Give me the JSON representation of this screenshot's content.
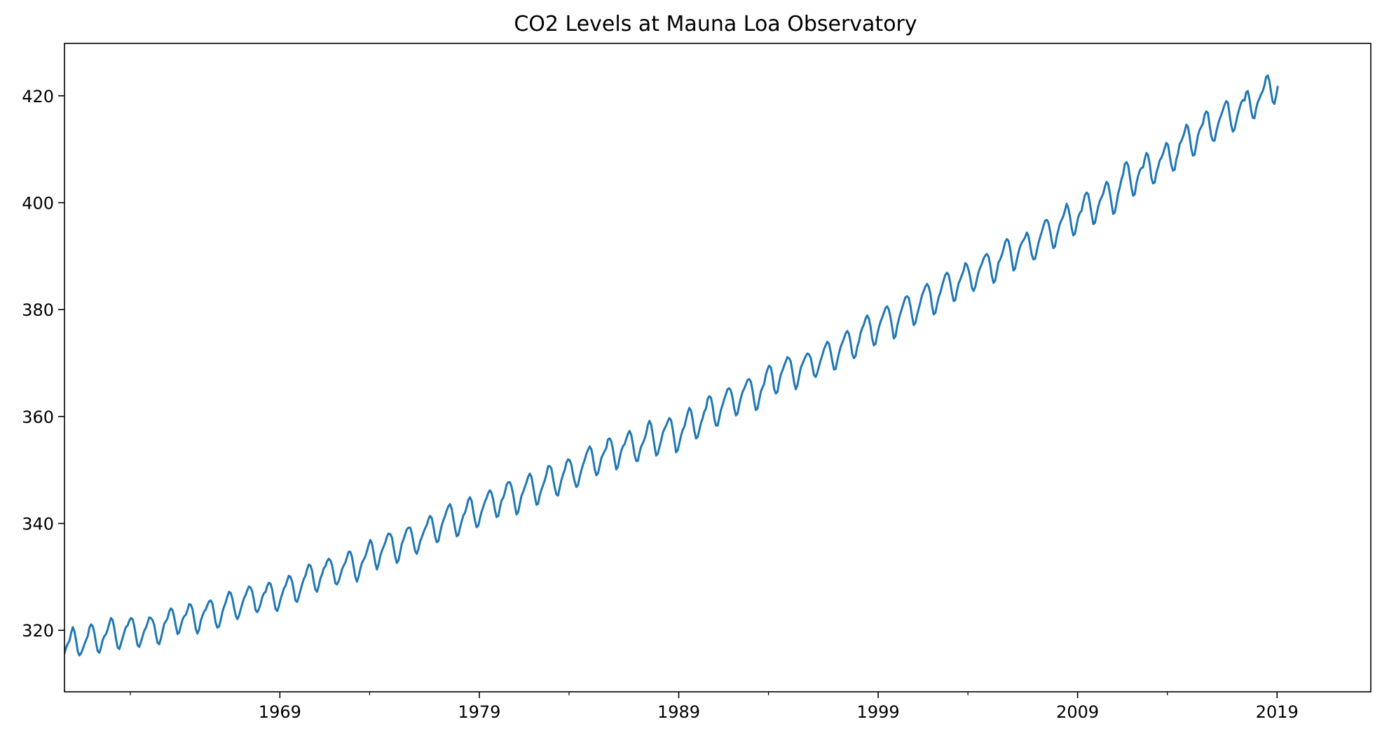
{
  "chart_data": {
    "type": "line",
    "title": "CO2 Levels at Mauna Loa Observatory",
    "xlabel": "",
    "ylabel": "",
    "xlim": [
      1958.2,
      2023.7
    ],
    "ylim": [
      308.5,
      429.8
    ],
    "grid": false,
    "legend": "none",
    "x_ticks": [
      {
        "value": 1969,
        "label": "1969"
      },
      {
        "value": 1979,
        "label": "1979"
      },
      {
        "value": 1989,
        "label": "1989"
      },
      {
        "value": 1999,
        "label": "1999"
      },
      {
        "value": 2009,
        "label": "2009"
      },
      {
        "value": 2019,
        "label": "2019"
      }
    ],
    "x_minor_ticks": [
      1961.5,
      1973.5,
      1983.5,
      1993.5,
      2003.5,
      2013.5
    ],
    "y_ticks": [
      {
        "value": 320,
        "label": "320"
      },
      {
        "value": 340,
        "label": "340"
      },
      {
        "value": 360,
        "label": "360"
      },
      {
        "value": 380,
        "label": "380"
      },
      {
        "value": 400,
        "label": "400"
      },
      {
        "value": 420,
        "label": "420"
      }
    ],
    "series": [
      {
        "color": "#1f77b4",
        "x_start": 1958.2,
        "x_step": 0.08333333,
        "values": [
          315.7,
          316.8,
          317.5,
          318.0,
          319.5,
          320.6,
          319.8,
          318.1,
          316.0,
          315.3,
          315.7,
          316.5,
          317.4,
          318.2,
          318.9,
          320.5,
          321.1,
          320.8,
          319.5,
          317.6,
          316.1,
          315.8,
          316.8,
          318.2,
          318.9,
          319.3,
          320.2,
          321.3,
          322.3,
          321.9,
          320.4,
          318.4,
          316.8,
          316.5,
          317.5,
          318.6,
          319.7,
          320.6,
          320.9,
          321.8,
          322.3,
          322.1,
          320.8,
          318.9,
          317.2,
          316.9,
          317.8,
          318.9,
          319.9,
          320.5,
          321.4,
          322.4,
          322.3,
          321.9,
          321.0,
          319.2,
          317.7,
          317.4,
          318.4,
          319.8,
          321.2,
          321.7,
          322.2,
          323.5,
          324.1,
          323.8,
          322.5,
          320.8,
          319.3,
          319.6,
          320.8,
          322.0,
          322.6,
          322.9,
          323.8,
          324.9,
          324.8,
          324.0,
          322.2,
          320.3,
          319.4,
          320.1,
          321.8,
          322.7,
          323.5,
          323.9,
          324.7,
          325.4,
          325.6,
          325.0,
          323.3,
          321.4,
          320.5,
          320.7,
          321.9,
          323.4,
          324.4,
          325.2,
          326.3,
          327.2,
          327.0,
          326.0,
          324.3,
          322.8,
          322.1,
          322.7,
          323.9,
          325.0,
          326.0,
          326.6,
          327.5,
          328.2,
          328.0,
          327.2,
          325.6,
          323.8,
          323.4,
          324.0,
          324.9,
          326.2,
          326.9,
          327.2,
          328.3,
          328.9,
          328.7,
          327.6,
          325.7,
          324.0,
          323.6,
          324.5,
          325.8,
          326.8,
          327.8,
          328.3,
          329.3,
          330.2,
          330.0,
          329.1,
          327.4,
          325.6,
          325.3,
          326.3,
          327.5,
          328.6,
          329.6,
          330.2,
          331.4,
          332.3,
          332.1,
          331.1,
          329.1,
          327.6,
          327.2,
          328.3,
          329.7,
          330.5,
          331.6,
          332.0,
          332.9,
          333.4,
          333.1,
          332.2,
          330.5,
          328.8,
          328.6,
          329.2,
          330.3,
          331.4,
          332.1,
          332.7,
          333.7,
          334.7,
          334.7,
          333.7,
          331.9,
          330.0,
          329.1,
          330.1,
          331.5,
          332.6,
          333.2,
          333.8,
          334.8,
          336.0,
          336.9,
          336.3,
          334.5,
          332.6,
          331.4,
          332.3,
          333.9,
          334.9,
          335.6,
          336.4,
          337.5,
          338.1,
          338.0,
          337.4,
          335.5,
          333.8,
          332.6,
          333.1,
          334.6,
          336.2,
          337.0,
          338.0,
          338.9,
          339.2,
          339.2,
          338.2,
          336.4,
          334.8,
          334.3,
          335.3,
          336.6,
          337.4,
          338.3,
          339.1,
          339.7,
          340.8,
          341.4,
          341.0,
          339.4,
          337.6,
          336.5,
          336.7,
          338.3,
          339.6,
          340.6,
          341.4,
          342.4,
          343.2,
          343.6,
          342.7,
          340.9,
          339.1,
          337.6,
          337.8,
          339.2,
          340.4,
          341.5,
          342.0,
          343.1,
          344.4,
          344.9,
          344.2,
          342.2,
          340.5,
          339.3,
          339.6,
          341.0,
          342.2,
          343.1,
          344.1,
          344.8,
          345.7,
          346.2,
          345.7,
          344.4,
          342.5,
          341.2,
          341.4,
          342.9,
          344.3,
          344.8,
          345.8,
          347.2,
          347.7,
          347.7,
          346.9,
          345.4,
          343.3,
          341.7,
          342.1,
          343.7,
          345.2,
          345.9,
          346.8,
          347.7,
          348.7,
          349.3,
          348.7,
          346.9,
          345.1,
          343.5,
          343.7,
          345.3,
          346.3,
          347.2,
          348.1,
          349.2,
          350.7,
          350.7,
          350.3,
          348.4,
          346.7,
          345.4,
          345.2,
          346.7,
          348.1,
          349.2,
          350.0,
          351.4,
          352.0,
          351.8,
          351.0,
          349.2,
          347.8,
          346.8,
          347.2,
          348.7,
          349.9,
          351.0,
          351.9,
          353.0,
          353.7,
          354.4,
          353.9,
          352.3,
          350.2,
          349.0,
          349.4,
          350.7,
          352.2,
          352.9,
          353.5,
          354.1,
          355.7,
          355.9,
          355.4,
          353.9,
          351.8,
          350.1,
          350.6,
          352.2,
          353.6,
          354.4,
          354.8,
          355.8,
          356.7,
          357.3,
          356.6,
          354.9,
          352.9,
          351.7,
          351.7,
          353.2,
          354.4,
          355.0,
          355.8,
          356.8,
          358.4,
          359.2,
          358.5,
          356.6,
          354.5,
          352.7,
          353.0,
          354.3,
          355.5,
          356.9,
          357.7,
          358.3,
          359.1,
          359.7,
          359.3,
          357.6,
          355.5,
          353.3,
          353.7,
          355.1,
          356.4,
          357.5,
          358.1,
          359.4,
          360.7,
          361.6,
          361.1,
          359.4,
          357.3,
          355.9,
          356.2,
          357.5,
          358.8,
          359.7,
          360.9,
          361.5,
          363.3,
          363.8,
          363.5,
          361.9,
          359.6,
          358.3,
          358.3,
          359.8,
          361.2,
          362.2,
          363.3,
          364.2,
          365.1,
          365.3,
          364.8,
          363.5,
          361.5,
          360.2,
          360.6,
          362.2,
          363.5,
          364.6,
          365.2,
          366.0,
          366.8,
          367.0,
          366.5,
          364.9,
          362.8,
          361.2,
          361.5,
          363.1,
          364.7,
          365.4,
          366.1,
          367.8,
          368.8,
          369.5,
          369.2,
          367.6,
          365.2,
          364.3,
          364.6,
          366.4,
          367.8,
          368.6,
          369.5,
          370.3,
          371.1,
          370.9,
          370.3,
          368.4,
          366.4,
          365.1,
          365.8,
          367.5,
          369.1,
          369.8,
          370.6,
          371.3,
          371.8,
          371.6,
          371.0,
          369.4,
          367.8,
          367.4,
          368.2,
          369.4,
          370.5,
          371.5,
          372.6,
          373.3,
          374.0,
          373.6,
          372.1,
          370.4,
          368.8,
          368.9,
          370.4,
          371.8,
          373.0,
          373.8,
          374.6,
          375.5,
          376.0,
          375.5,
          373.9,
          371.7,
          370.9,
          371.3,
          373.0,
          374.0,
          375.6,
          376.5,
          377.2,
          378.3,
          378.9,
          378.3,
          376.8,
          374.6,
          373.3,
          373.6,
          375.3,
          376.6,
          377.7,
          378.5,
          379.4,
          380.3,
          380.6,
          380.0,
          378.6,
          376.7,
          374.6,
          375.0,
          376.8,
          378.2,
          379.3,
          380.3,
          381.3,
          382.3,
          382.5,
          382.2,
          380.7,
          378.7,
          377.1,
          377.5,
          379.0,
          380.2,
          381.4,
          382.7,
          383.5,
          384.3,
          384.8,
          384.3,
          383.0,
          380.7,
          379.1,
          379.4,
          380.9,
          382.3,
          383.2,
          384.4,
          385.5,
          386.5,
          386.9,
          386.5,
          385.0,
          383.1,
          381.6,
          381.8,
          383.5,
          384.9,
          385.6,
          386.5,
          387.3,
          388.7,
          388.4,
          387.4,
          386.0,
          384.1,
          383.5,
          384.2,
          385.7,
          387.0,
          387.9,
          388.6,
          389.5,
          390.1,
          390.4,
          389.9,
          388.4,
          386.3,
          385.0,
          385.4,
          387.1,
          388.8,
          389.4,
          390.2,
          391.3,
          392.6,
          393.2,
          392.9,
          391.4,
          389.2,
          387.3,
          387.7,
          389.3,
          390.6,
          391.8,
          392.5,
          393.0,
          393.5,
          394.4,
          393.8,
          392.1,
          390.3,
          389.4,
          389.5,
          390.9,
          392.4,
          393.5,
          394.5,
          395.6,
          396.6,
          396.8,
          396.3,
          394.8,
          392.9,
          391.5,
          391.8,
          393.6,
          394.9,
          396.1,
          396.8,
          397.5,
          398.5,
          399.8,
          399.0,
          397.4,
          395.3,
          393.9,
          394.2,
          395.8,
          397.3,
          398.1,
          398.5,
          400.1,
          401.4,
          401.9,
          401.6,
          399.9,
          397.9,
          396.0,
          396.2,
          397.8,
          399.3,
          400.3,
          401.0,
          401.7,
          403.0,
          403.9,
          403.5,
          401.8,
          399.9,
          397.9,
          398.2,
          399.9,
          401.7,
          402.9,
          404.4,
          405.3,
          407.2,
          407.6,
          407.0,
          405.0,
          402.8,
          401.3,
          401.6,
          403.6,
          405.0,
          406.0,
          406.5,
          406.6,
          408.2,
          409.3,
          408.9,
          407.2,
          404.6,
          403.6,
          403.8,
          405.6,
          406.6,
          407.9,
          408.4,
          409.2,
          410.2,
          411.2,
          410.8,
          408.9,
          407.0,
          406.0,
          406.2,
          408.1,
          409.2,
          411.0,
          411.5,
          412.3,
          413.3,
          414.6,
          414.2,
          412.4,
          410.1,
          408.8,
          409.0,
          410.8,
          412.6,
          413.6,
          414.2,
          414.8,
          416.4,
          417.1,
          416.8,
          414.5,
          412.5,
          411.6,
          411.6,
          413.2,
          414.5,
          415.6,
          416.4,
          417.3,
          418.3,
          419.0,
          418.7,
          416.6,
          414.5,
          413.3,
          413.7,
          415.1,
          416.6,
          417.7,
          418.7,
          419.2,
          419.1,
          420.6,
          420.9,
          419.4,
          417.2,
          415.9,
          415.8,
          417.6,
          418.8,
          419.5,
          420.3,
          420.9,
          421.9,
          423.5,
          423.8,
          422.8,
          420.7,
          418.9,
          418.5,
          419.9,
          421.7
        ]
      }
    ]
  }
}
